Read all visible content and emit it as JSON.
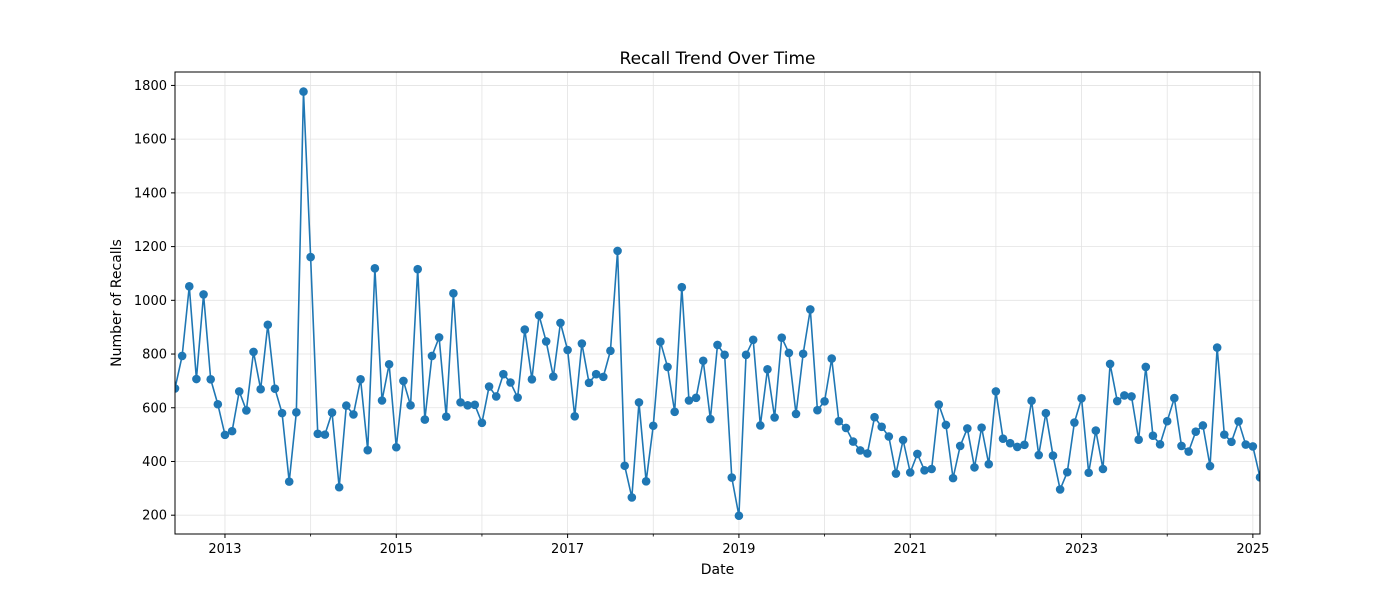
{
  "chart_data": {
    "type": "line",
    "title": "Recall Trend Over Time",
    "xlabel": "Date",
    "ylabel": "Number of Recalls",
    "x_axis": {
      "range": [
        "2012-06",
        "2025-02"
      ],
      "major_ticks": [
        "2013",
        "2015",
        "2017",
        "2019",
        "2021",
        "2023",
        "2025"
      ],
      "minor_ticks": [
        "2014",
        "2016",
        "2018",
        "2020",
        "2022",
        "2024"
      ]
    },
    "y_axis": {
      "ylim": [
        130,
        1850
      ],
      "ticks": [
        "200",
        "400",
        "600",
        "800",
        "1000",
        "1200",
        "1400",
        "1600",
        "1800"
      ]
    },
    "grid": true,
    "color": "#1f77b4",
    "marker": "circle",
    "series": [
      {
        "x": [
          "2012-06",
          "2012-07",
          "2012-08",
          "2012-09",
          "2012-10",
          "2012-11",
          "2012-12",
          "2013-01",
          "2013-02",
          "2013-03",
          "2013-04",
          "2013-05",
          "2013-06",
          "2013-07",
          "2013-08",
          "2013-09",
          "2013-10",
          "2013-11",
          "2013-12",
          "2014-01",
          "2014-02",
          "2014-03",
          "2014-04",
          "2014-05",
          "2014-06",
          "2014-07",
          "2014-08",
          "2014-09",
          "2014-10",
          "2014-11",
          "2014-12",
          "2015-01",
          "2015-02",
          "2015-03",
          "2015-04",
          "2015-05",
          "2015-06",
          "2015-07",
          "2015-08",
          "2015-09",
          "2015-10",
          "2015-11",
          "2015-12",
          "2016-01",
          "2016-02",
          "2016-03",
          "2016-04",
          "2016-05",
          "2016-06",
          "2016-07",
          "2016-08",
          "2016-09",
          "2016-10",
          "2016-11",
          "2016-12",
          "2017-01",
          "2017-02",
          "2017-03",
          "2017-04",
          "2017-05",
          "2017-06",
          "2017-07",
          "2017-08",
          "2017-09",
          "2017-10",
          "2017-11",
          "2017-12",
          "2018-01",
          "2018-02",
          "2018-03",
          "2018-04",
          "2018-05",
          "2018-06",
          "2018-07",
          "2018-08",
          "2018-09",
          "2018-10",
          "2018-11",
          "2018-12",
          "2019-01",
          "2019-02",
          "2019-03",
          "2019-04",
          "2019-05",
          "2019-06",
          "2019-07",
          "2019-08",
          "2019-09",
          "2019-10",
          "2019-11",
          "2019-12",
          "2020-01",
          "2020-02",
          "2020-03",
          "2020-04",
          "2020-05",
          "2020-06",
          "2020-07",
          "2020-08",
          "2020-09",
          "2020-10",
          "2020-11",
          "2020-12",
          "2021-01",
          "2021-02",
          "2021-03",
          "2021-04",
          "2021-05",
          "2021-06",
          "2021-07",
          "2021-08",
          "2021-09",
          "2021-10",
          "2021-11",
          "2021-12",
          "2022-01",
          "2022-02",
          "2022-03",
          "2022-04",
          "2022-05",
          "2022-06",
          "2022-07",
          "2022-08",
          "2022-09",
          "2022-10",
          "2022-11",
          "2022-12",
          "2023-01",
          "2023-02",
          "2023-03",
          "2023-04",
          "2023-05",
          "2023-06",
          "2023-07",
          "2023-08",
          "2023-09",
          "2023-10",
          "2023-11",
          "2023-12",
          "2024-01",
          "2024-02",
          "2024-03",
          "2024-04",
          "2024-05",
          "2024-06",
          "2024-07",
          "2024-08",
          "2024-09",
          "2024-10",
          "2024-11",
          "2024-12",
          "2025-01",
          "2025-02"
        ],
        "values": [
          672,
          793,
          1052,
          707,
          1022,
          706,
          613,
          499,
          513,
          661,
          590,
          808,
          669,
          909,
          671,
          580,
          325,
          583,
          1777,
          1161,
          503,
          500,
          582,
          304,
          608,
          575,
          706,
          442,
          1119,
          627,
          762,
          453,
          700,
          609,
          1116,
          556,
          793,
          862,
          567,
          1026,
          620,
          609,
          611,
          544,
          679,
          642,
          725,
          694,
          638,
          891,
          706,
          944,
          847,
          716,
          916,
          815,
          568,
          839,
          693,
          725,
          715,
          812,
          1184,
          384,
          266,
          620,
          326,
          533,
          846,
          752,
          585,
          1049,
          627,
          637,
          775,
          558,
          834,
          797,
          340,
          198,
          797,
          853,
          534,
          743,
          564,
          861,
          804,
          577,
          801,
          966,
          591,
          624,
          783,
          550,
          525,
          474,
          441,
          430,
          565,
          529,
          493,
          355,
          480,
          359,
          428,
          367,
          372,
          612,
          536,
          338,
          458,
          523,
          378,
          526,
          390,
          661,
          485,
          468,
          454,
          462,
          626,
          424,
          580,
          422,
          296,
          360,
          545,
          635,
          358,
          515,
          372,
          763,
          625,
          646,
          642,
          481,
          752,
          496,
          464,
          550,
          636,
          458,
          437,
          511,
          534,
          383,
          824,
          500,
          473,
          549,
          463,
          456,
          341
        ]
      }
    ]
  }
}
